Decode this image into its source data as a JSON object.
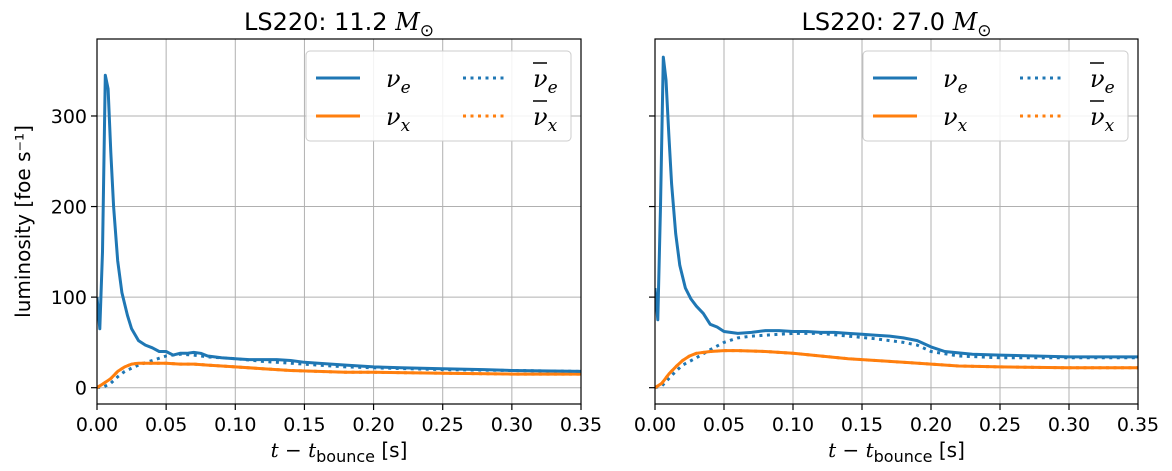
{
  "chart_data": [
    {
      "type": "line",
      "title": "LS220: 11.2",
      "title_symbol": "M",
      "title_sub": "⊙",
      "xlabel_main": "t − t",
      "xlabel_sub": "bounce",
      "xlabel_unit": " [s]",
      "ylabel": "luminosity [foe s⁻¹]",
      "xlim": [
        0,
        0.35
      ],
      "ylim": [
        -18,
        385
      ],
      "xticks": [
        "0.00",
        "0.05",
        "0.10",
        "0.15",
        "0.20",
        "0.25",
        "0.30",
        "0.35"
      ],
      "yticks": [
        "0",
        "100",
        "200",
        "300"
      ],
      "grid": true,
      "legend_position": "top-right",
      "series": [
        {
          "name": "ν_e",
          "label": "ν",
          "sub": "e",
          "bar": false,
          "color": "#1f77b4",
          "style": "solid",
          "points": [
            [
              0,
              100
            ],
            [
              0.002,
              65
            ],
            [
              0.004,
              150
            ],
            [
              0.006,
              345
            ],
            [
              0.008,
              330
            ],
            [
              0.01,
              260
            ],
            [
              0.012,
              200
            ],
            [
              0.015,
              140
            ],
            [
              0.018,
              105
            ],
            [
              0.022,
              80
            ],
            [
              0.025,
              65
            ],
            [
              0.03,
              52
            ],
            [
              0.035,
              47
            ],
            [
              0.04,
              44
            ],
            [
              0.045,
              40
            ],
            [
              0.05,
              40
            ],
            [
              0.055,
              36
            ],
            [
              0.06,
              38
            ],
            [
              0.065,
              38
            ],
            [
              0.07,
              39
            ],
            [
              0.075,
              38
            ],
            [
              0.08,
              35
            ],
            [
              0.09,
              33
            ],
            [
              0.1,
              32
            ],
            [
              0.11,
              31
            ],
            [
              0.12,
              31
            ],
            [
              0.13,
              31
            ],
            [
              0.14,
              30
            ],
            [
              0.15,
              28
            ],
            [
              0.16,
              27
            ],
            [
              0.18,
              25
            ],
            [
              0.2,
              23
            ],
            [
              0.22,
              22
            ],
            [
              0.25,
              21
            ],
            [
              0.28,
              20
            ],
            [
              0.3,
              19
            ],
            [
              0.35,
              18
            ]
          ]
        },
        {
          "name": "ν_x",
          "label": "ν",
          "sub": "x",
          "bar": false,
          "color": "#ff7f0e",
          "style": "solid",
          "points": [
            [
              0,
              0
            ],
            [
              0.005,
              5
            ],
            [
              0.01,
              10
            ],
            [
              0.015,
              18
            ],
            [
              0.02,
              23
            ],
            [
              0.025,
              26
            ],
            [
              0.03,
              27
            ],
            [
              0.04,
              27
            ],
            [
              0.05,
              27
            ],
            [
              0.06,
              26
            ],
            [
              0.07,
              26
            ],
            [
              0.08,
              25
            ],
            [
              0.1,
              23
            ],
            [
              0.12,
              21
            ],
            [
              0.14,
              19
            ],
            [
              0.16,
              18
            ],
            [
              0.18,
              17
            ],
            [
              0.2,
              17
            ],
            [
              0.25,
              16
            ],
            [
              0.3,
              15
            ],
            [
              0.35,
              15
            ]
          ]
        },
        {
          "name": "ν̄_e",
          "label": "ν",
          "sub": "e",
          "bar": true,
          "color": "#1f77b4",
          "style": "dotted",
          "points": [
            [
              0,
              0
            ],
            [
              0.005,
              1
            ],
            [
              0.01,
              5
            ],
            [
              0.015,
              12
            ],
            [
              0.02,
              18
            ],
            [
              0.03,
              25
            ],
            [
              0.04,
              30
            ],
            [
              0.05,
              35
            ],
            [
              0.06,
              37
            ],
            [
              0.07,
              36
            ],
            [
              0.08,
              34
            ],
            [
              0.09,
              33
            ],
            [
              0.1,
              32
            ],
            [
              0.12,
              29
            ],
            [
              0.14,
              27
            ],
            [
              0.16,
              25
            ],
            [
              0.18,
              23
            ],
            [
              0.2,
              22
            ],
            [
              0.25,
              20
            ],
            [
              0.3,
              19
            ],
            [
              0.35,
              18
            ]
          ]
        },
        {
          "name": "ν̄_x",
          "label": "ν",
          "sub": "x",
          "bar": true,
          "color": "#ff7f0e",
          "style": "dotted",
          "points": [
            [
              0,
              0
            ],
            [
              0.005,
              5
            ],
            [
              0.01,
              10
            ],
            [
              0.015,
              18
            ],
            [
              0.02,
              23
            ],
            [
              0.025,
              26
            ],
            [
              0.03,
              27
            ],
            [
              0.04,
              27
            ],
            [
              0.05,
              27
            ],
            [
              0.06,
              26
            ],
            [
              0.07,
              26
            ],
            [
              0.08,
              25
            ],
            [
              0.1,
              23
            ],
            [
              0.12,
              21
            ],
            [
              0.14,
              19
            ],
            [
              0.16,
              18
            ],
            [
              0.18,
              17
            ],
            [
              0.2,
              17
            ],
            [
              0.25,
              16
            ],
            [
              0.3,
              15
            ],
            [
              0.35,
              15
            ]
          ]
        }
      ]
    },
    {
      "type": "line",
      "title": "LS220: 27.0",
      "title_symbol": "M",
      "title_sub": "⊙",
      "xlabel_main": "t − t",
      "xlabel_sub": "bounce",
      "xlabel_unit": " [s]",
      "ylabel": "",
      "xlim": [
        0,
        0.35
      ],
      "ylim": [
        -18,
        385
      ],
      "xticks": [
        "0.00",
        "0.05",
        "0.10",
        "0.15",
        "0.20",
        "0.25",
        "0.30",
        "0.35"
      ],
      "yticks": [],
      "grid": true,
      "legend_position": "top-right",
      "series": [
        {
          "name": "ν_e",
          "label": "ν",
          "sub": "e",
          "bar": false,
          "color": "#1f77b4",
          "style": "solid",
          "points": [
            [
              0,
              110
            ],
            [
              0.002,
              75
            ],
            [
              0.004,
              200
            ],
            [
              0.006,
              365
            ],
            [
              0.008,
              340
            ],
            [
              0.01,
              280
            ],
            [
              0.012,
              225
            ],
            [
              0.015,
              170
            ],
            [
              0.018,
              135
            ],
            [
              0.022,
              110
            ],
            [
              0.026,
              98
            ],
            [
              0.03,
              90
            ],
            [
              0.035,
              82
            ],
            [
              0.04,
              70
            ],
            [
              0.045,
              67
            ],
            [
              0.05,
              62
            ],
            [
              0.06,
              60
            ],
            [
              0.07,
              61
            ],
            [
              0.08,
              63
            ],
            [
              0.09,
              63
            ],
            [
              0.1,
              62
            ],
            [
              0.11,
              62
            ],
            [
              0.12,
              61
            ],
            [
              0.13,
              61
            ],
            [
              0.14,
              60
            ],
            [
              0.15,
              59
            ],
            [
              0.16,
              58
            ],
            [
              0.17,
              57
            ],
            [
              0.18,
              55
            ],
            [
              0.19,
              52
            ],
            [
              0.2,
              45
            ],
            [
              0.21,
              40
            ],
            [
              0.23,
              37
            ],
            [
              0.25,
              36
            ],
            [
              0.3,
              34
            ],
            [
              0.35,
              34
            ]
          ]
        },
        {
          "name": "ν_x",
          "label": "ν",
          "sub": "x",
          "bar": false,
          "color": "#ff7f0e",
          "style": "solid",
          "points": [
            [
              0,
              0
            ],
            [
              0.005,
              5
            ],
            [
              0.01,
              15
            ],
            [
              0.015,
              23
            ],
            [
              0.02,
              30
            ],
            [
              0.025,
              35
            ],
            [
              0.03,
              38
            ],
            [
              0.04,
              40
            ],
            [
              0.05,
              41
            ],
            [
              0.06,
              41
            ],
            [
              0.08,
              40
            ],
            [
              0.1,
              38
            ],
            [
              0.12,
              35
            ],
            [
              0.14,
              32
            ],
            [
              0.16,
              30
            ],
            [
              0.18,
              28
            ],
            [
              0.2,
              26
            ],
            [
              0.22,
              24
            ],
            [
              0.25,
              23
            ],
            [
              0.3,
              22
            ],
            [
              0.35,
              22
            ]
          ]
        },
        {
          "name": "ν̄_e",
          "label": "ν",
          "sub": "e",
          "bar": true,
          "color": "#1f77b4",
          "style": "dotted",
          "points": [
            [
              0,
              0
            ],
            [
              0.005,
              2
            ],
            [
              0.01,
              10
            ],
            [
              0.015,
              18
            ],
            [
              0.02,
              25
            ],
            [
              0.03,
              33
            ],
            [
              0.04,
              42
            ],
            [
              0.05,
              50
            ],
            [
              0.06,
              55
            ],
            [
              0.07,
              57
            ],
            [
              0.08,
              58
            ],
            [
              0.1,
              60
            ],
            [
              0.12,
              60
            ],
            [
              0.14,
              57
            ],
            [
              0.16,
              54
            ],
            [
              0.18,
              50
            ],
            [
              0.19,
              47
            ],
            [
              0.2,
              40
            ],
            [
              0.22,
              35
            ],
            [
              0.25,
              33
            ],
            [
              0.3,
              33
            ],
            [
              0.35,
              33
            ]
          ]
        },
        {
          "name": "ν̄_x",
          "label": "ν",
          "sub": "x",
          "bar": true,
          "color": "#ff7f0e",
          "style": "dotted",
          "points": [
            [
              0,
              0
            ],
            [
              0.005,
              5
            ],
            [
              0.01,
              15
            ],
            [
              0.015,
              23
            ],
            [
              0.02,
              30
            ],
            [
              0.025,
              35
            ],
            [
              0.03,
              38
            ],
            [
              0.04,
              40
            ],
            [
              0.05,
              41
            ],
            [
              0.06,
              41
            ],
            [
              0.08,
              40
            ],
            [
              0.1,
              38
            ],
            [
              0.12,
              35
            ],
            [
              0.14,
              32
            ],
            [
              0.16,
              30
            ],
            [
              0.18,
              28
            ],
            [
              0.2,
              26
            ],
            [
              0.22,
              24
            ],
            [
              0.25,
              23
            ],
            [
              0.3,
              22
            ],
            [
              0.35,
              22
            ]
          ]
        }
      ]
    }
  ]
}
